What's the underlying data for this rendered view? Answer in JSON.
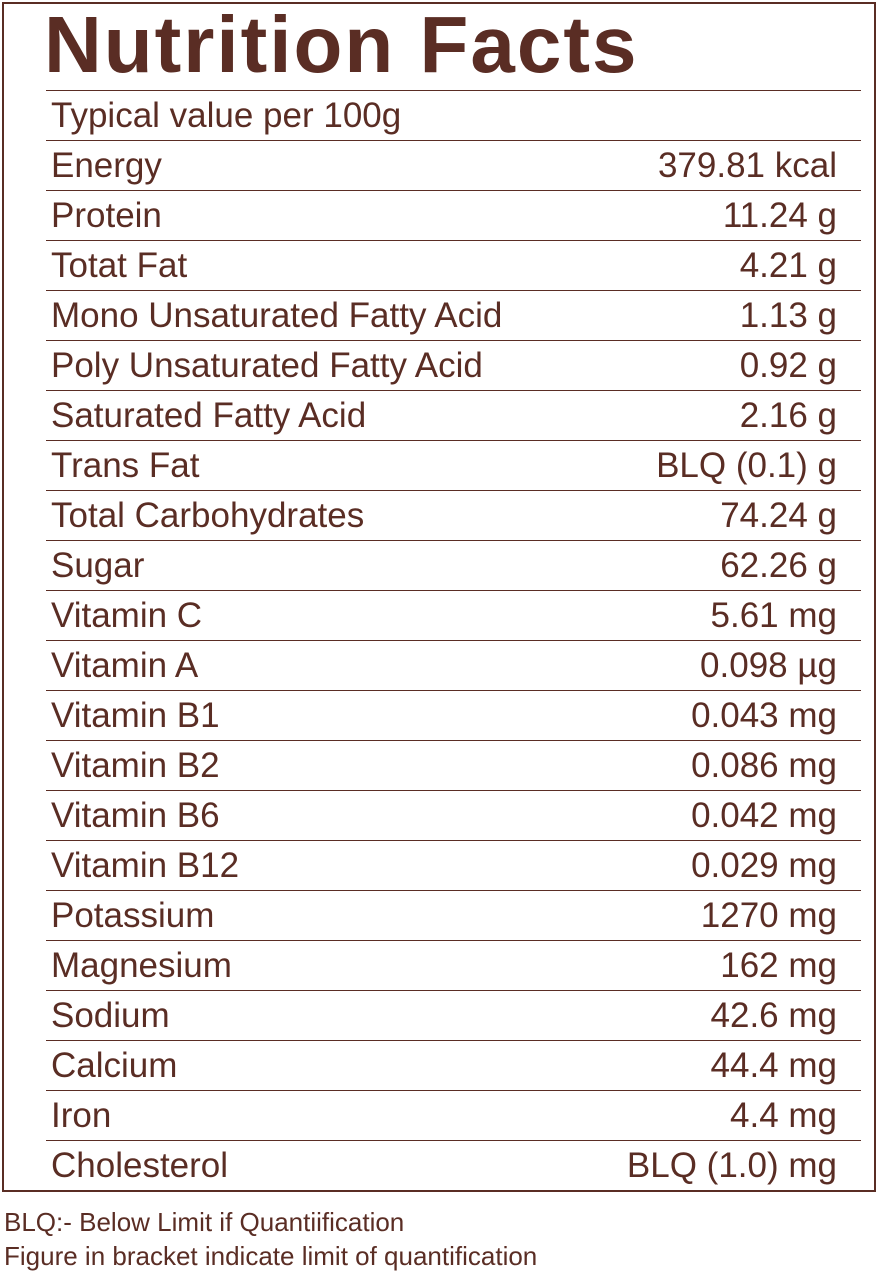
{
  "title": "Nutrition Facts",
  "serving": "Typical value per 100g",
  "nutrients": [
    {
      "label": "Energy",
      "value": "379.81 kcal"
    },
    {
      "label": "Protein",
      "value": "11.24 g"
    },
    {
      "label": "Totat Fat",
      "value": "4.21 g"
    },
    {
      "label": "Mono Unsaturated Fatty Acid",
      "value": "1.13 g"
    },
    {
      "label": "Poly Unsaturated Fatty Acid",
      "value": "0.92 g"
    },
    {
      "label": "Saturated Fatty Acid",
      "value": "2.16 g"
    },
    {
      "label": "Trans Fat",
      "value": "BLQ (0.1) g"
    },
    {
      "label": "Total Carbohydrates",
      "value": "74.24 g"
    },
    {
      "label": "Sugar",
      "value": "62.26 g"
    },
    {
      "label": "Vitamin C",
      "value": "5.61 mg"
    },
    {
      "label": "Vitamin A",
      "value": "0.098 µg"
    },
    {
      "label": "Vitamin B1",
      "value": "0.043 mg"
    },
    {
      "label": "Vitamin B2",
      "value": "0.086 mg"
    },
    {
      "label": "Vitamin B6",
      "value": "0.042 mg"
    },
    {
      "label": "Vitamin B12",
      "value": "0.029 mg"
    },
    {
      "label": "Potassium",
      "value": "1270 mg"
    },
    {
      "label": "Magnesium",
      "value": "162 mg"
    },
    {
      "label": "Sodium",
      "value": "42.6 mg"
    },
    {
      "label": "Calcium",
      "value": "44.4 mg"
    },
    {
      "label": "Iron",
      "value": "4.4 mg"
    },
    {
      "label": "Cholesterol",
      "value": "BLQ (1.0) mg"
    }
  ],
  "footnotes": [
    "BLQ:- Below Limit if Quantiification",
    "Figure in bracket indicate limit of quantification"
  ],
  "colors": {
    "text": "#5a2d24",
    "background": "#ffffff"
  }
}
